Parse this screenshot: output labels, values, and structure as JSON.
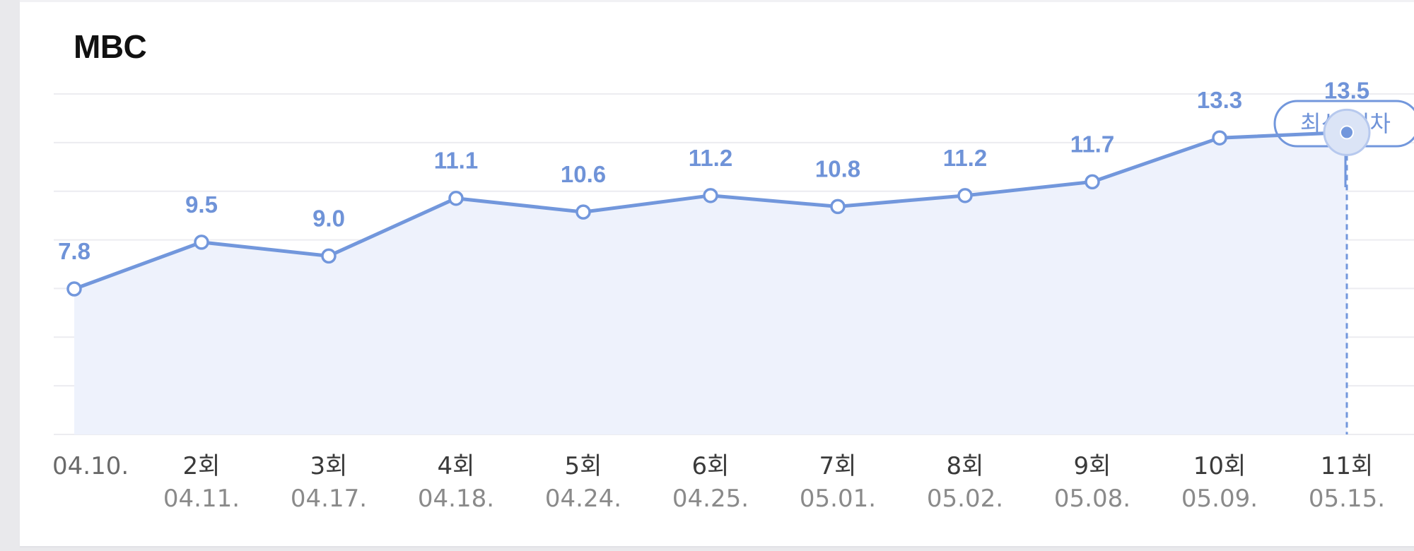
{
  "card": {
    "title": "MBC"
  },
  "chart_data": {
    "type": "line",
    "title": "MBC",
    "episodes": [
      "",
      "2회",
      "3회",
      "4회",
      "5회",
      "6회",
      "7회",
      "8회",
      "9회",
      "10회",
      "11회"
    ],
    "dates": [
      "04.10.",
      "04.11.",
      "04.17.",
      "04.18.",
      "04.24.",
      "04.25.",
      "05.01.",
      "05.02.",
      "05.08.",
      "05.09.",
      "05.15."
    ],
    "values": [
      7.8,
      9.5,
      9.0,
      11.1,
      10.6,
      11.2,
      10.8,
      11.2,
      11.7,
      13.3,
      13.5
    ],
    "value_labels": [
      "7.8",
      "9.5",
      "9.0",
      "11.1",
      "10.6",
      "11.2",
      "10.8",
      "11.2",
      "11.7",
      "13.3",
      "13.5"
    ],
    "latest_label": "최신 회차",
    "latest_index": 10,
    "ylim": [
      2.5,
      14.9
    ],
    "grid": true,
    "colors": {
      "line": "#7297dc",
      "area": "#eef2fc",
      "label": "#6f93d8",
      "episode_text": "#3a3a3a",
      "date_text": "#8a8a8a",
      "grid": "#ececf0"
    }
  }
}
